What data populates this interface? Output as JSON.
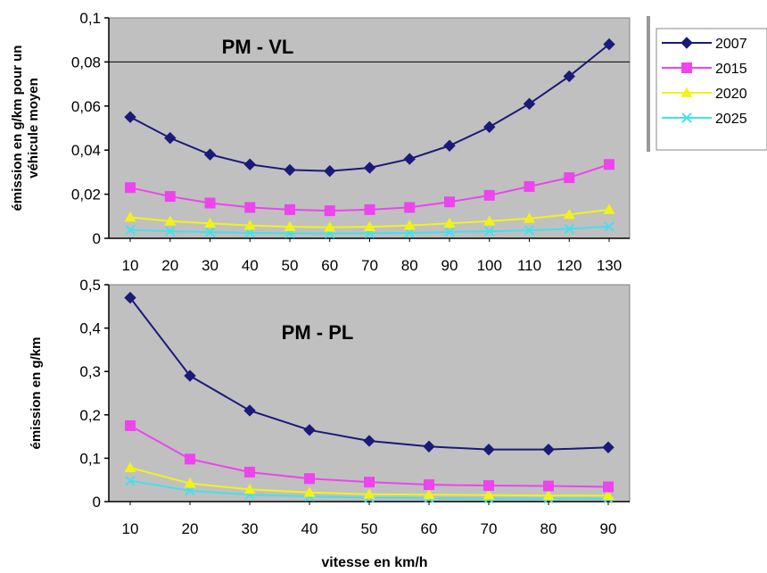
{
  "colors": {
    "plot_background": "#c0c0c0",
    "2007": "#1a1a7a",
    "2015": "#ee44ee",
    "2020": "#f2f21a",
    "2025": "#44e0ee"
  },
  "legend": {
    "placement": "right of top chart",
    "entries": [
      {
        "label": "2007",
        "marker": "diamond",
        "color_key": "2007"
      },
      {
        "label": "2015",
        "marker": "square",
        "color_key": "2015"
      },
      {
        "label": "2020",
        "marker": "triangle",
        "color_key": "2020"
      },
      {
        "label": "2025",
        "marker": "x",
        "color_key": "2025"
      }
    ]
  },
  "chart_data": [
    {
      "type": "line",
      "title": "PM - VL",
      "ylabel": [
        "émission en g/km pour un",
        "véhicule moyen"
      ],
      "xlabel": "",
      "x": [
        10,
        20,
        30,
        40,
        50,
        60,
        70,
        80,
        90,
        100,
        110,
        120,
        130
      ],
      "ylim": [
        0,
        0.1
      ],
      "yticks": [
        "0",
        "0,02",
        "0,04",
        "0,06",
        "0,08",
        "0,1"
      ],
      "gridlines": [
        0.08
      ],
      "series": [
        {
          "name": "2007",
          "marker": "diamond",
          "values": [
            0.055,
            0.0455,
            0.038,
            0.0335,
            0.031,
            0.0305,
            0.032,
            0.036,
            0.042,
            0.0505,
            0.061,
            0.0735,
            0.088
          ]
        },
        {
          "name": "2015",
          "marker": "square",
          "values": [
            0.023,
            0.019,
            0.016,
            0.014,
            0.013,
            0.0125,
            0.013,
            0.014,
            0.0165,
            0.0195,
            0.0235,
            0.0275,
            0.0335
          ]
        },
        {
          "name": "2020",
          "marker": "triangle",
          "values": [
            0.0095,
            0.0078,
            0.0068,
            0.0058,
            0.0052,
            0.005,
            0.0052,
            0.0058,
            0.0068,
            0.0078,
            0.009,
            0.0108,
            0.013
          ]
        },
        {
          "name": "2025",
          "marker": "x",
          "values": [
            0.0038,
            0.0032,
            0.0028,
            0.0025,
            0.0023,
            0.0022,
            0.0023,
            0.0025,
            0.0028,
            0.0032,
            0.0036,
            0.0043,
            0.0053
          ]
        }
      ]
    },
    {
      "type": "line",
      "title": "PM - PL",
      "ylabel": [
        "émission en g/km"
      ],
      "xlabel": "vitesse en km/h",
      "x": [
        10,
        20,
        30,
        40,
        50,
        60,
        70,
        80,
        90
      ],
      "ylim": [
        0,
        0.5
      ],
      "yticks": [
        "0",
        "0,1",
        "0,2",
        "0,3",
        "0,4",
        "0,5"
      ],
      "gridlines": [],
      "series": [
        {
          "name": "2007",
          "marker": "diamond",
          "values": [
            0.47,
            0.29,
            0.21,
            0.165,
            0.14,
            0.127,
            0.12,
            0.12,
            0.125
          ]
        },
        {
          "name": "2015",
          "marker": "square",
          "values": [
            0.175,
            0.098,
            0.068,
            0.053,
            0.045,
            0.039,
            0.037,
            0.036,
            0.034
          ]
        },
        {
          "name": "2020",
          "marker": "triangle",
          "values": [
            0.078,
            0.042,
            0.028,
            0.021,
            0.017,
            0.016,
            0.015,
            0.014,
            0.014
          ]
        },
        {
          "name": "2025",
          "marker": "x",
          "values": [
            0.048,
            0.025,
            0.016,
            0.012,
            0.009,
            0.008,
            0.007,
            0.007,
            0.007
          ]
        }
      ]
    }
  ]
}
